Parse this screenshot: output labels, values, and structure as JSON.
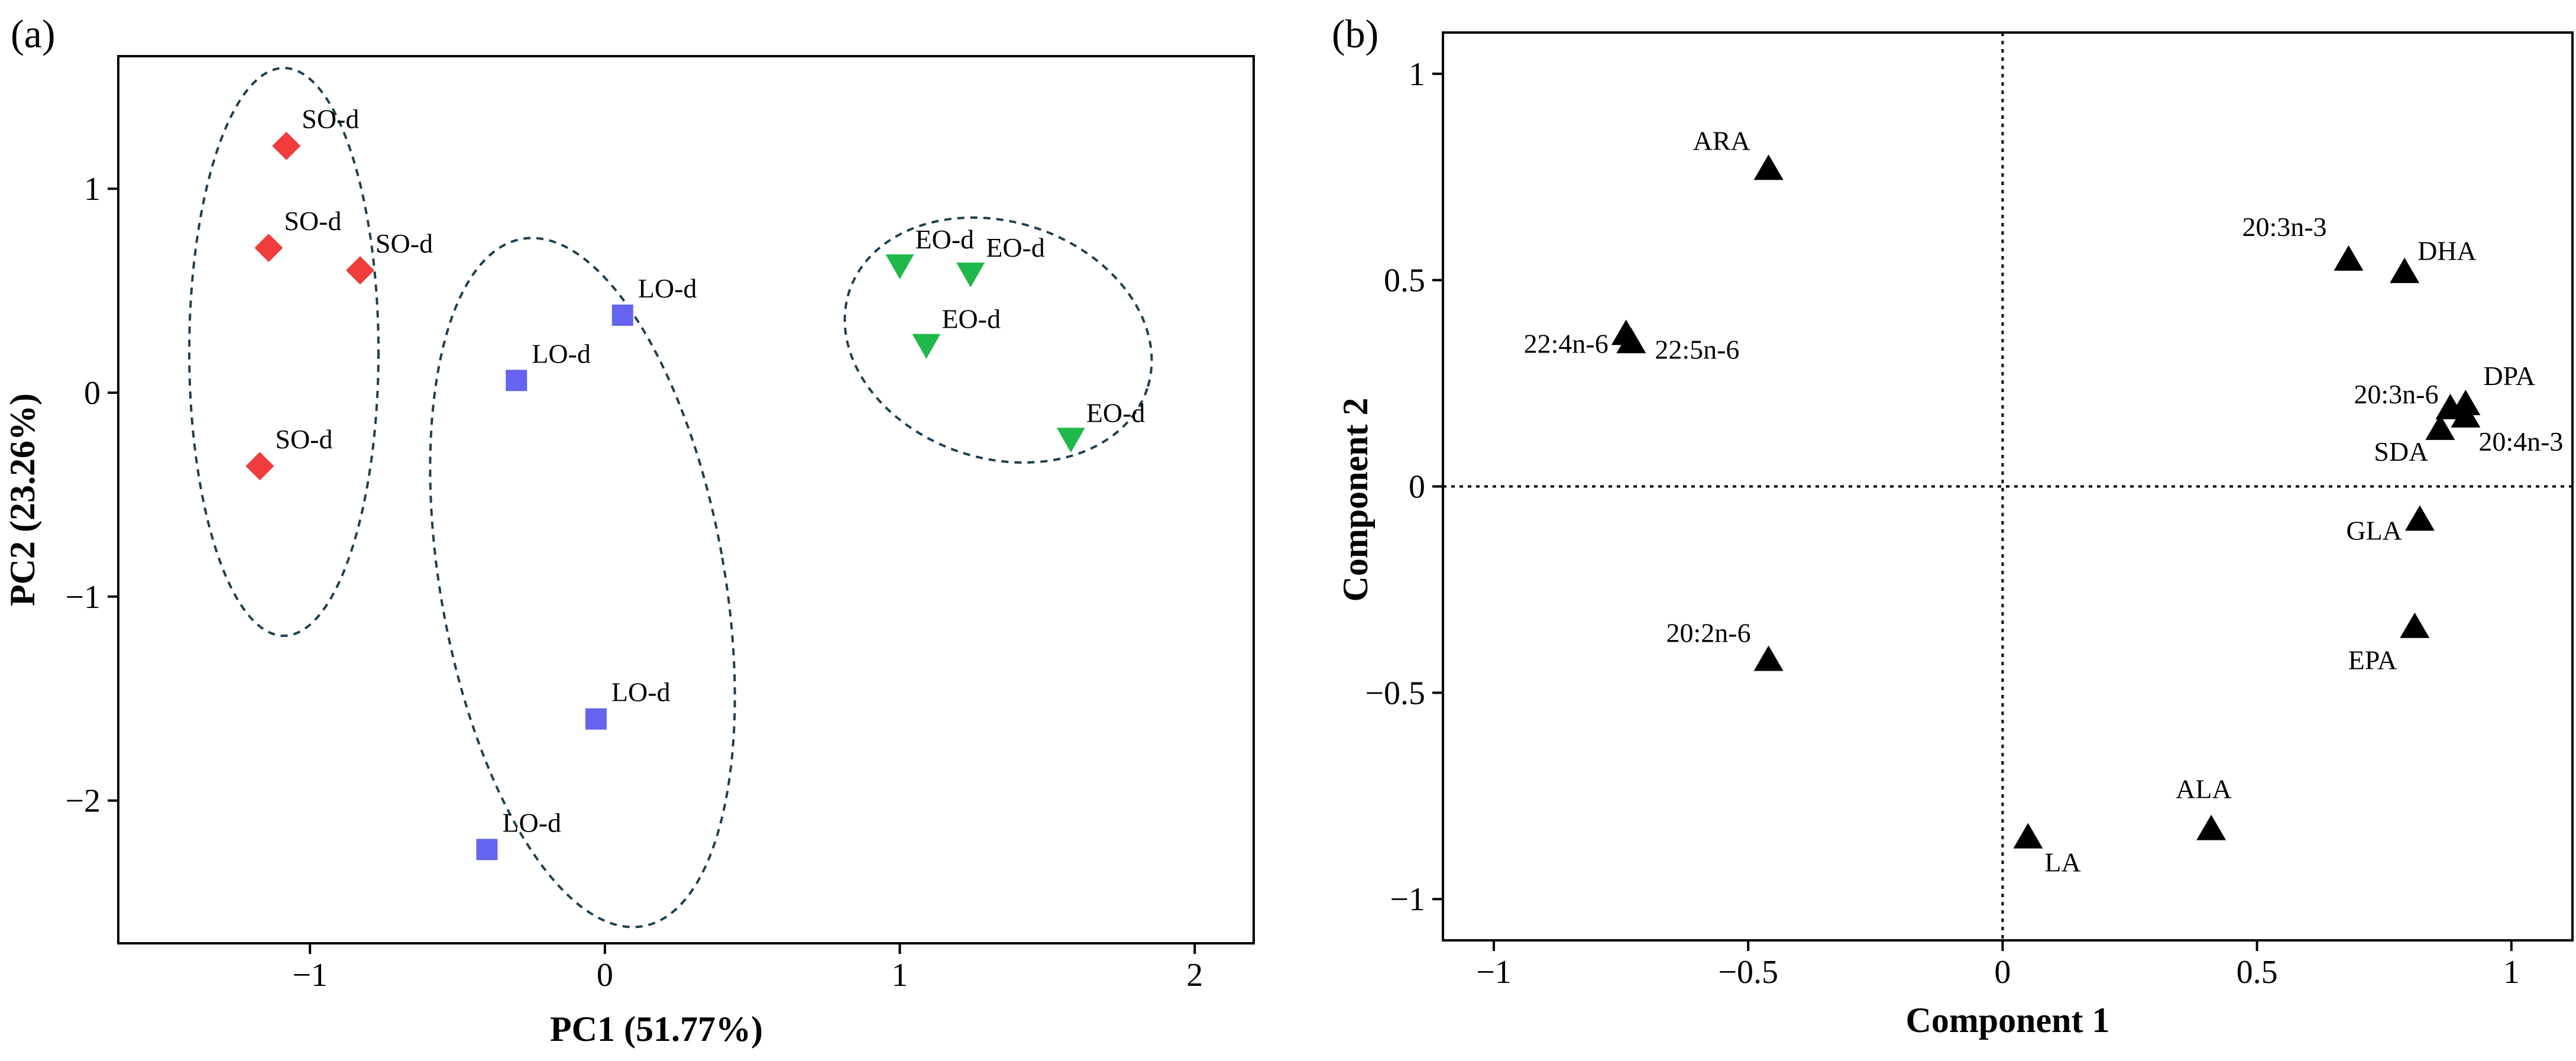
{
  "colors": {
    "so": "#f03c3c",
    "lo": "#6464f0",
    "eo": "#1fb84a",
    "loading": "#000000",
    "ellipse": "#1f3f4f"
  },
  "chart_data": [
    {
      "type": "scatter",
      "panel_label": "(a)",
      "xlabel": "PC1 (51.77%)",
      "ylabel": "PC2 (23.26%)",
      "xlim": [
        -1.65,
        2.2
      ],
      "ylim": [
        -2.7,
        1.65
      ],
      "xticks": [
        -1,
        0,
        1,
        2
      ],
      "xtick_labels": [
        "−1",
        "0",
        "1",
        "2"
      ],
      "yticks": [
        -2,
        -1,
        0,
        1
      ],
      "ytick_labels": [
        "−2",
        "−1",
        "0",
        "1"
      ],
      "series": [
        {
          "name": "SO-d",
          "marker": "diamond",
          "color_key": "so",
          "points": [
            {
              "x": -1.08,
              "y": 1.21,
              "label": "SO-d"
            },
            {
              "x": -1.14,
              "y": 0.71,
              "label": "SO-d"
            },
            {
              "x": -0.83,
              "y": 0.6,
              "label": "SO-d"
            },
            {
              "x": -1.17,
              "y": -0.36,
              "label": "SO-d"
            }
          ]
        },
        {
          "name": "LO-d",
          "marker": "square",
          "color_key": "lo",
          "points": [
            {
              "x": 0.06,
              "y": 0.38,
              "label": "LO-d"
            },
            {
              "x": -0.3,
              "y": 0.06,
              "label": "LO-d"
            },
            {
              "x": -0.03,
              "y": -1.6,
              "label": "LO-d"
            },
            {
              "x": -0.4,
              "y": -2.24,
              "label": "LO-d"
            }
          ]
        },
        {
          "name": "EO-d",
          "marker": "triangle-down",
          "color_key": "eo",
          "points": [
            {
              "x": 1.0,
              "y": 0.62,
              "label": "EO-d"
            },
            {
              "x": 1.24,
              "y": 0.58,
              "label": "EO-d"
            },
            {
              "x": 1.09,
              "y": 0.23,
              "label": "EO-d"
            },
            {
              "x": 1.58,
              "y": -0.23,
              "label": "EO-d"
            }
          ]
        }
      ]
    },
    {
      "type": "scatter",
      "panel_label": "(b)",
      "xlabel": "Component 1",
      "ylabel": "Component 2",
      "xlim": [
        -1.1,
        1.12
      ],
      "ylim": [
        -1.1,
        1.1
      ],
      "xticks": [
        -1,
        -0.5,
        0,
        0.5,
        1
      ],
      "xtick_labels": [
        "−1",
        "−0.5",
        "0",
        "0.5",
        "1"
      ],
      "yticks": [
        -1,
        -0.5,
        0,
        0.5,
        1
      ],
      "ytick_labels": [
        "−1",
        "−0.5",
        "0",
        "0.5",
        "1"
      ],
      "series": [
        {
          "name": "loadings",
          "marker": "triangle-up",
          "color_key": "loading",
          "points": [
            {
              "x": -0.46,
              "y": 0.77,
              "label": "ARA"
            },
            {
              "x": 0.68,
              "y": 0.55,
              "label": "20:3n-3"
            },
            {
              "x": 0.79,
              "y": 0.52,
              "label": "DHA"
            },
            {
              "x": -0.74,
              "y": 0.37,
              "label": "22:4n-6"
            },
            {
              "x": -0.73,
              "y": 0.35,
              "label": "22:5n-6"
            },
            {
              "x": 0.88,
              "y": 0.19,
              "label": "20:3n-6"
            },
            {
              "x": 0.91,
              "y": 0.2,
              "label": "DPA"
            },
            {
              "x": 0.86,
              "y": 0.14,
              "label": "SDA"
            },
            {
              "x": 0.91,
              "y": 0.17,
              "label": "20:4n-3"
            },
            {
              "x": 0.82,
              "y": -0.08,
              "label": "GLA"
            },
            {
              "x": 0.81,
              "y": -0.34,
              "label": "EPA"
            },
            {
              "x": -0.46,
              "y": -0.42,
              "label": "20:2n-6"
            },
            {
              "x": 0.41,
              "y": -0.83,
              "label": "ALA"
            },
            {
              "x": 0.05,
              "y": -0.85,
              "label": "LA"
            }
          ]
        }
      ]
    }
  ]
}
